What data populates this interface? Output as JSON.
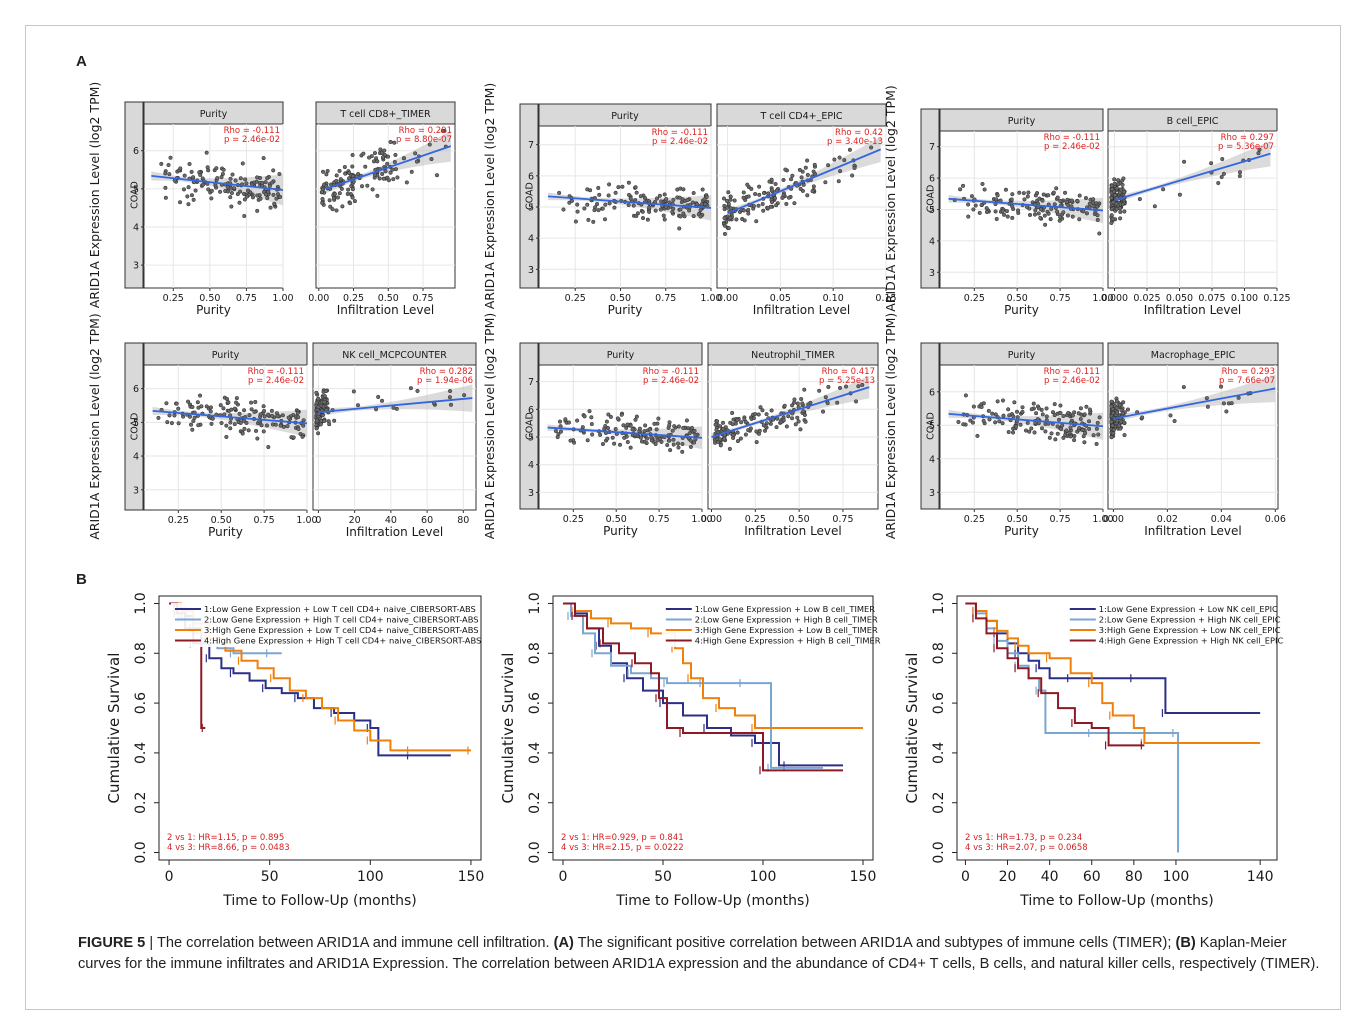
{
  "caption": {
    "label": "FIGURE 5",
    "sep": " | ",
    "s1": "The correlation between ARID1A and immune cell infiltration. ",
    "tagA": "(A)",
    "s2": " The significant positive correlation between ARID1A and subtypes of immune cells (TIMER); ",
    "tagB": "(B)",
    "s3": " Kaplan-Meier curves for the immune infiltrates and ARID1A Expression. The correlation between ARID1A expression and the abundance of CD4+ T cells, B cells, and natural killer cells, respectively (TIMER)."
  },
  "panel_letters": {
    "a": "A",
    "b": "B"
  },
  "chart_data": [
    {
      "type": "scatter",
      "panel": "A",
      "strip": "COAD",
      "ylabel": "ARID1A Expression Level (log2 TPM)",
      "ylim": [
        2.4,
        6.7
      ],
      "yticks": [
        3,
        4,
        5,
        6
      ],
      "facets": [
        {
          "title": "Purity",
          "xlabel": "Purity",
          "xlim": [
            0.05,
            1.0
          ],
          "xticks": [
            0.25,
            0.5,
            0.75,
            1.0
          ],
          "xticklabels": [
            "0.25",
            "0.50",
            "0.75",
            "1.00"
          ],
          "rho": "Rho = -0.111",
          "p": "p = 2.46e-02",
          "fit": [
            [
              0.1,
              5.34
            ],
            [
              1.0,
              4.97
            ]
          ]
        },
        {
          "title": "T cell CD8+_TIMER",
          "xlabel": "Infiltration Level",
          "xlim": [
            -0.02,
            0.98
          ],
          "xticks": [
            0,
            0.25,
            0.5,
            0.75
          ],
          "xticklabels": [
            "0.00",
            "0.25",
            "0.50",
            "0.75"
          ],
          "rho": "Rho = 0.291",
          "p": "p = 8.80e-07",
          "fit": [
            [
              0.05,
              5.0
            ],
            [
              0.95,
              6.12
            ]
          ]
        }
      ]
    },
    {
      "type": "scatter",
      "panel": "A",
      "strip": "COAD",
      "ylabel": "ARID1A Expression Level (log2 TPM)",
      "ylim": [
        2.4,
        7.6
      ],
      "yticks": [
        3,
        4,
        5,
        6,
        7
      ],
      "facets": [
        {
          "title": "Purity",
          "xlabel": "Purity",
          "xlim": [
            0.05,
            1.0
          ],
          "xticks": [
            0.25,
            0.5,
            0.75,
            1.0
          ],
          "xticklabels": [
            "0.25",
            "0.50",
            "0.75",
            "1.00"
          ],
          "rho": "Rho = -0.111",
          "p": "p = 2.46e-02",
          "fit": [
            [
              0.1,
              5.34
            ],
            [
              1.0,
              4.97
            ]
          ]
        },
        {
          "title": "T cell CD4+_EPIC",
          "xlabel": "Infiltration Level",
          "xlim": [
            -0.01,
            0.15
          ],
          "xticks": [
            0,
            0.05,
            0.1,
            0.15
          ],
          "xticklabels": [
            "0.00",
            "0.05",
            "0.10",
            "0.15"
          ],
          "rho": "Rho = 0.42",
          "p": "p = 3.40e-13",
          "fit": [
            [
              0.0,
              4.8
            ],
            [
              0.145,
              6.85
            ]
          ]
        }
      ]
    },
    {
      "type": "scatter",
      "panel": "A",
      "strip": "COAD",
      "ylabel": "ARID1A Expression Level (log2 TPM)",
      "ylim": [
        2.5,
        7.5
      ],
      "yticks": [
        3,
        4,
        5,
        6,
        7
      ],
      "facets": [
        {
          "title": "Purity",
          "xlabel": "Purity",
          "xlim": [
            0.05,
            1.0
          ],
          "xticks": [
            0.25,
            0.5,
            0.75,
            1.0
          ],
          "xticklabels": [
            "0.25",
            "0.50",
            "0.75",
            "1.00"
          ],
          "rho": "Rho = -0.111",
          "p": "p = 2.46e-02",
          "fit": [
            [
              0.1,
              5.34
            ],
            [
              1.0,
              4.97
            ]
          ]
        },
        {
          "title": "B cell_EPIC",
          "xlabel": "Infiltration Level",
          "xlim": [
            -0.005,
            0.125
          ],
          "xticks": [
            0,
            0.025,
            0.05,
            0.075,
            0.1,
            0.125
          ],
          "xticklabels": [
            "0.000",
            "0.025",
            "0.050",
            "0.075",
            "0.100",
            "0.125"
          ],
          "rho": "Rho = 0.297",
          "p": "p = 5.36e-07",
          "fit": [
            [
              0.0,
              5.3
            ],
            [
              0.12,
              6.78
            ]
          ]
        }
      ]
    },
    {
      "type": "scatter",
      "panel": "A",
      "strip": "COAD",
      "ylabel": "ARID1A Expression Level (log2 TPM)",
      "ylim": [
        2.4,
        6.7
      ],
      "yticks": [
        3,
        4,
        5,
        6
      ],
      "facets": [
        {
          "title": "Purity",
          "xlabel": "Purity",
          "xlim": [
            0.05,
            1.0
          ],
          "xticks": [
            0.25,
            0.5,
            0.75,
            1.0
          ],
          "xticklabels": [
            "0.25",
            "0.50",
            "0.75",
            "1.00"
          ],
          "rho": "Rho = -0.111",
          "p": "p = 2.46e-02",
          "fit": [
            [
              0.1,
              5.34
            ],
            [
              1.0,
              4.97
            ]
          ]
        },
        {
          "title": "NK cell_MCPCOUNTER",
          "xlabel": "Infiltration Level",
          "xlim": [
            -3,
            87
          ],
          "xticks": [
            0,
            20,
            40,
            60,
            80
          ],
          "xticklabels": [
            "0",
            "20",
            "40",
            "60",
            "80"
          ],
          "rho": "Rho = 0.282",
          "p": "p = 1.94e-06",
          "fit": [
            [
              0,
              5.3
            ],
            [
              85,
              5.72
            ]
          ]
        }
      ]
    },
    {
      "type": "scatter",
      "panel": "A",
      "strip": "COAD",
      "ylabel": "ARID1A Expression Level (log2 TPM)",
      "ylim": [
        2.4,
        7.6
      ],
      "yticks": [
        3,
        4,
        5,
        6,
        7
      ],
      "facets": [
        {
          "title": "Purity",
          "xlabel": "Purity",
          "xlim": [
            0.05,
            1.0
          ],
          "xticks": [
            0.25,
            0.5,
            0.75,
            1.0
          ],
          "xticklabels": [
            "0.25",
            "0.50",
            "0.75",
            "1.00"
          ],
          "rho": "Rho = -0.111",
          "p": "p = 2.46e-02",
          "fit": [
            [
              0.1,
              5.34
            ],
            [
              1.0,
              4.97
            ]
          ]
        },
        {
          "title": "Neutrophil_TIMER",
          "xlabel": "Infiltration Level",
          "xlim": [
            -0.02,
            0.95
          ],
          "xticks": [
            0,
            0.25,
            0.5,
            0.75
          ],
          "xticklabels": [
            "0.00",
            "0.25",
            "0.50",
            "0.75"
          ],
          "rho": "Rho = 0.417",
          "p": "p = 5.25e-13",
          "fit": [
            [
              0.0,
              5.0
            ],
            [
              0.9,
              6.8
            ]
          ]
        }
      ]
    },
    {
      "type": "scatter",
      "panel": "A",
      "strip": "COAD",
      "ylabel": "ARID1A Expression Level (log2 TPM)",
      "ylim": [
        2.5,
        6.8
      ],
      "yticks": [
        3,
        4,
        5,
        6
      ],
      "facets": [
        {
          "title": "Purity",
          "xlabel": "Purity",
          "xlim": [
            0.05,
            1.0
          ],
          "xticks": [
            0.25,
            0.5,
            0.75,
            1.0
          ],
          "xticklabels": [
            "0.25",
            "0.50",
            "0.75",
            "1.00"
          ],
          "rho": "Rho = -0.111",
          "p": "p = 2.46e-02",
          "fit": [
            [
              0.1,
              5.34
            ],
            [
              1.0,
              4.97
            ]
          ]
        },
        {
          "title": "Macrophage_EPIC",
          "xlabel": "Infiltration Level",
          "xlim": [
            -0.002,
            0.061
          ],
          "xticks": [
            0,
            0.02,
            0.04,
            0.06
          ],
          "xticklabels": [
            "0.00",
            "0.02",
            "0.04",
            "0.06"
          ],
          "rho": "Rho = 0.293",
          "p": "p = 7.66e-07",
          "fit": [
            [
              0.0,
              5.2
            ],
            [
              0.06,
              6.1
            ]
          ]
        }
      ]
    },
    {
      "type": "line",
      "panel": "B",
      "subtype": "kaplan-meier",
      "xlabel": "Time to Follow-Up (months)",
      "ylabel": "Cumulative Survival",
      "xlim": [
        -5,
        155
      ],
      "ylim": [
        -0.03,
        1.03
      ],
      "xticks": [
        0,
        50,
        100,
        150
      ],
      "yticks": [
        0,
        0.2,
        0.4,
        0.6,
        0.8,
        1.0
      ],
      "yticklabels": [
        "0.0",
        "0.2",
        "0.4",
        "0.6",
        "0.8",
        "1.0"
      ],
      "legend": "top-right",
      "stats": [
        "2 vs 1: HR=1.15, p = 0.895",
        "4 vs 3: HR=8.66, p = 0.0483"
      ],
      "series": [
        {
          "name": "1:Low Gene Expression + Low T cell CD4+ naive_CIBERSORT-ABS",
          "color": "#2b2f86",
          "x": [
            0,
            4,
            8,
            12,
            16,
            20,
            26,
            32,
            40,
            48,
            56,
            64,
            72,
            82,
            92,
            100,
            104,
            120,
            140
          ],
          "y": [
            1.0,
            0.98,
            0.95,
            0.9,
            0.84,
            0.78,
            0.74,
            0.72,
            0.69,
            0.66,
            0.64,
            0.62,
            0.58,
            0.56,
            0.53,
            0.5,
            0.39,
            0.39,
            0.39
          ]
        },
        {
          "name": "2:Low Gene Expression + High T cell CD4+ naive_CIBERSORT-ABS",
          "color": "#7aa6d2",
          "x": [
            0,
            6,
            12,
            18,
            24,
            32,
            40,
            50,
            56
          ],
          "y": [
            1.0,
            0.94,
            0.88,
            0.84,
            0.82,
            0.8,
            0.8,
            0.8,
            0.8
          ]
        },
        {
          "name": "3:High Gene Expression + Low T cell CD4+ naive_CIBERSORT-ABS",
          "color": "#f0800c",
          "x": [
            0,
            6,
            12,
            20,
            28,
            36,
            44,
            52,
            60,
            68,
            76,
            84,
            92,
            100,
            110,
            120,
            130,
            150
          ],
          "y": [
            1.0,
            0.97,
            0.92,
            0.86,
            0.81,
            0.77,
            0.74,
            0.7,
            0.65,
            0.62,
            0.58,
            0.53,
            0.49,
            0.45,
            0.41,
            0.41,
            0.41,
            0.41
          ]
        },
        {
          "name": "4:High Gene Expression + High T cell CD4+ naive_CIBERSORT-ABS",
          "color": "#8c1a26",
          "x": [
            0,
            4,
            8,
            12,
            16,
            18
          ],
          "y": [
            1.0,
            0.96,
            0.9,
            0.84,
            0.5,
            0.5
          ]
        }
      ]
    },
    {
      "type": "line",
      "panel": "B",
      "subtype": "kaplan-meier",
      "xlabel": "Time to Follow-Up (months)",
      "ylabel": "Cumulative Survival",
      "xlim": [
        -5,
        155
      ],
      "ylim": [
        -0.03,
        1.03
      ],
      "xticks": [
        0,
        50,
        100,
        150
      ],
      "yticks": [
        0,
        0.2,
        0.4,
        0.6,
        0.8,
        1.0
      ],
      "yticklabels": [
        "0.0",
        "0.2",
        "0.4",
        "0.6",
        "0.8",
        "1.0"
      ],
      "legend": "top-right",
      "stats": [
        "2 vs 1: HR=0.929, p = 0.841",
        "4 vs 3: HR=2.15, p = 0.0222"
      ],
      "series": [
        {
          "name": "1:Low Gene Expression + Low B cell_TIMER",
          "color": "#2b2f86",
          "x": [
            0,
            6,
            12,
            18,
            24,
            32,
            40,
            50,
            60,
            72,
            84,
            96,
            108,
            112,
            140
          ],
          "y": [
            1.0,
            0.96,
            0.9,
            0.83,
            0.76,
            0.7,
            0.65,
            0.6,
            0.55,
            0.5,
            0.47,
            0.44,
            0.35,
            0.35,
            0.35
          ]
        },
        {
          "name": "2:Low Gene Expression + High B cell_TIMER",
          "color": "#7aa6d2",
          "x": [
            0,
            4,
            10,
            16,
            24,
            34,
            44,
            52,
            60,
            70,
            80,
            90,
            100,
            104,
            130
          ],
          "y": [
            1.0,
            0.95,
            0.88,
            0.8,
            0.75,
            0.72,
            0.7,
            0.68,
            0.68,
            0.68,
            0.68,
            0.68,
            0.68,
            0.34,
            0.34
          ]
        },
        {
          "name": "3:High Gene Expression + Low B cell_TIMER",
          "color": "#f0800c",
          "x": [
            0,
            6,
            14,
            24,
            34,
            44,
            52,
            56,
            60,
            64,
            70,
            78,
            86,
            96,
            150
          ],
          "y": [
            1.0,
            0.97,
            0.94,
            0.92,
            0.9,
            0.88,
            0.88,
            0.82,
            0.76,
            0.7,
            0.62,
            0.58,
            0.55,
            0.5,
            0.5
          ]
        },
        {
          "name": "4:High Gene Expression + High B cell_TIMER",
          "color": "#8c1a26",
          "x": [
            0,
            6,
            12,
            20,
            28,
            36,
            44,
            48,
            52,
            60,
            80,
            100,
            140
          ],
          "y": [
            1.0,
            0.95,
            0.9,
            0.84,
            0.8,
            0.76,
            0.72,
            0.62,
            0.5,
            0.48,
            0.48,
            0.33,
            0.33
          ]
        }
      ]
    },
    {
      "type": "line",
      "panel": "B",
      "subtype": "kaplan-meier",
      "xlabel": "Time to Follow-Up (months)",
      "ylabel": "Cumulative Survival",
      "xlim": [
        -4,
        148
      ],
      "ylim": [
        -0.03,
        1.03
      ],
      "xticks": [
        0,
        20,
        40,
        60,
        80,
        100,
        140
      ],
      "yticks": [
        0,
        0.2,
        0.4,
        0.6,
        0.8,
        1.0
      ],
      "yticklabels": [
        "0.0",
        "0.2",
        "0.4",
        "0.6",
        "0.8",
        "1.0"
      ],
      "legend": "top-right",
      "stats": [
        "2 vs 1: HR=1.73, p = 0.234",
        "4 vs 3: HR=2.07, p = 0.0658"
      ],
      "series": [
        {
          "name": "1:Low Gene Expression + Low NK cell_EPIC",
          "color": "#2b2f86",
          "x": [
            0,
            5,
            10,
            15,
            20,
            25,
            30,
            35,
            40,
            50,
            60,
            80,
            92,
            95,
            140
          ],
          "y": [
            1.0,
            0.97,
            0.93,
            0.88,
            0.84,
            0.8,
            0.77,
            0.74,
            0.7,
            0.7,
            0.7,
            0.7,
            0.7,
            0.56,
            0.56
          ]
        },
        {
          "name": "2:Low Gene Expression + High NK cell_EPIC",
          "color": "#7aa6d2",
          "x": [
            0,
            5,
            10,
            15,
            20,
            25,
            30,
            35,
            38,
            60,
            80,
            100,
            101
          ],
          "y": [
            1.0,
            0.96,
            0.9,
            0.85,
            0.8,
            0.75,
            0.7,
            0.65,
            0.48,
            0.48,
            0.48,
            0.48,
            0.0
          ]
        },
        {
          "name": "3:High Gene Expression + Low NK cell_EPIC",
          "color": "#f0800c",
          "x": [
            0,
            5,
            10,
            15,
            20,
            25,
            30,
            40,
            50,
            60,
            65,
            70,
            80,
            85,
            140
          ],
          "y": [
            1.0,
            0.97,
            0.93,
            0.89,
            0.86,
            0.83,
            0.8,
            0.78,
            0.72,
            0.68,
            0.6,
            0.55,
            0.5,
            0.44,
            0.44
          ]
        },
        {
          "name": "4:High Gene Expression + High NK cell_EPIC",
          "color": "#8c1a26",
          "x": [
            0,
            5,
            10,
            15,
            20,
            25,
            30,
            36,
            44,
            52,
            60,
            68,
            72,
            85
          ],
          "y": [
            1.0,
            0.94,
            0.88,
            0.82,
            0.78,
            0.74,
            0.7,
            0.64,
            0.58,
            0.52,
            0.5,
            0.43,
            0.43,
            0.43
          ]
        }
      ]
    }
  ]
}
